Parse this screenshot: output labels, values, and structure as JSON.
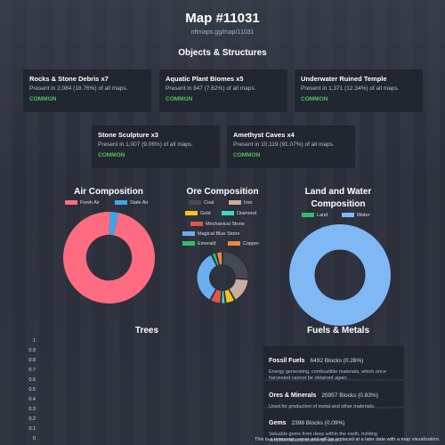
{
  "page": {
    "title": "Map #11031",
    "link": "nftmaps.gg/map/11031"
  },
  "objects": {
    "heading": "Objects & Structures",
    "cards": [
      {
        "name": "Rocks & Stone Debris x7",
        "presence": "Present in 2,084 (18.76%) of all maps.",
        "rarity": "COMMON"
      },
      {
        "name": "Aquatic Plant Biomes x5",
        "presence": "Present in 847 (7.62%) of all maps.",
        "rarity": "COMMON"
      },
      {
        "name": "Underwater Ruined Temple",
        "presence": "Present in 1,371 (12.34%) of all maps.",
        "rarity": "COMMON"
      },
      {
        "name": "Stone Sculpture x3",
        "presence": "Present in 1,007 (9.06%) of all maps.",
        "rarity": "COMMON"
      },
      {
        "name": "Amethyst Caves x4",
        "presence": "Present in 10,119 (91.07%) of all maps.",
        "rarity": "COMMON"
      }
    ]
  },
  "air": {
    "heading": "Air Composition",
    "legend": [
      {
        "label": "Fresh Air",
        "color": "#ff6b81"
      },
      {
        "label": "Stale Air",
        "color": "#3fa4e8"
      }
    ]
  },
  "ore": {
    "heading": "Ore Composition",
    "legend": [
      {
        "label": "Coal",
        "color": "#454a52"
      },
      {
        "label": "Iron",
        "color": "#c9ad9c"
      },
      {
        "label": "Gold",
        "color": "#f5c518"
      },
      {
        "label": "Diamond",
        "color": "#3ed8c8"
      },
      {
        "label": "Mechanical Stone",
        "color": "#e0554d"
      },
      {
        "label": "Magical Blue Stone",
        "color": "#6aaef0"
      },
      {
        "label": "Emerald",
        "color": "#2fbf6a"
      },
      {
        "label": "Copper",
        "color": "#f0883a"
      }
    ]
  },
  "landwater": {
    "heading_line1": "Land and Water",
    "heading_line2": "Composition",
    "legend": [
      {
        "label": "Land",
        "color": "#2fbf6a"
      },
      {
        "label": "Water",
        "color": "#7fb8f5"
      }
    ]
  },
  "trees": {
    "heading": "Trees",
    "ticks": [
      "1",
      "0.9",
      "0.8",
      "0.7",
      "0.6",
      "0.5",
      "0.4",
      "0.3",
      "0.2",
      "0.1",
      "0"
    ]
  },
  "fuels": {
    "heading": "Fuels & Metals",
    "items": [
      {
        "name": "Fossil Fuels",
        "value": "6492 Blocks (0.26%)",
        "desc": "Energy generating, combustible materials, which once harvested cannot be obtained again."
      },
      {
        "name": "Ores & Minerals",
        "value": "20957 Blocks (0.83%)",
        "desc": "Used for production of metal and other materials."
      },
      {
        "name": "Gems",
        "value": "2398 Blocks (0.09%)",
        "desc": "Valuable gems from deep within the earth, holding sentimental and economic value."
      }
    ]
  },
  "chart_data": [
    {
      "type": "pie",
      "title": "Air Composition",
      "categories": [
        "Fresh Air",
        "Stale Air"
      ],
      "values": [
        97,
        3
      ],
      "colors": [
        "#ff6b81",
        "#3fa4e8"
      ]
    },
    {
      "type": "pie",
      "title": "Ore Composition",
      "categories": [
        "Coal",
        "Iron",
        "Gold",
        "Diamond",
        "Mechanical Stone",
        "Magical Blue Stone",
        "Emerald",
        "Copper"
      ],
      "values": [
        26,
        16,
        6,
        3,
        7,
        35,
        3,
        4
      ],
      "colors": [
        "#454a52",
        "#c9ad9c",
        "#f5c518",
        "#3ed8c8",
        "#e0554d",
        "#6aaef0",
        "#2fbf6a",
        "#f0883a"
      ]
    },
    {
      "type": "pie",
      "title": "Land and Water Composition",
      "categories": [
        "Land",
        "Water"
      ],
      "values": [
        0,
        100
      ],
      "colors": [
        "#2fbf6a",
        "#7fb8f5"
      ]
    },
    {
      "type": "bar",
      "title": "Trees",
      "categories": [],
      "values": [],
      "ylim": [
        0,
        1
      ]
    }
  ],
  "footer": {
    "text": "This is a temporary cover and will be replaced at a later date with a map visualization."
  }
}
